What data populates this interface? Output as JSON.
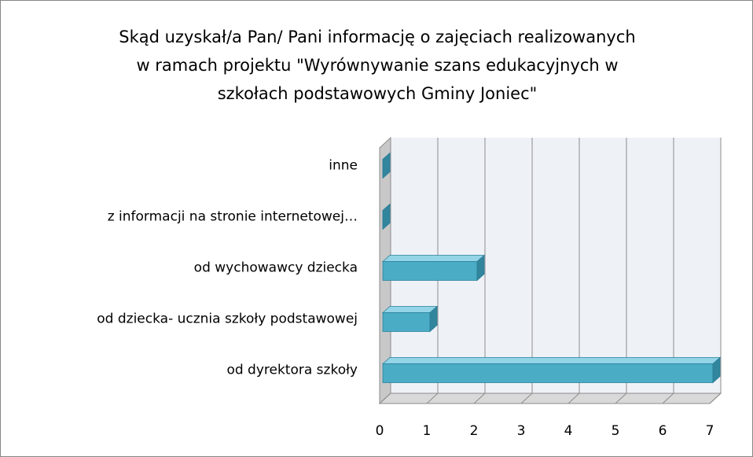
{
  "chart_data": {
    "type": "bar3d_horizontal",
    "title": [
      "Skąd uzyskał/a Pan/ Pani informację o zajęciach realizowanych",
      "w ramach projektu \"Wyrównywanie szans edukacyjnych w",
      "szkołach podstawowych Gminy Joniec\""
    ],
    "categories": [
      "inne",
      "z informacji na stronie internetowej…",
      "od wychowawcy dziecka",
      "od dziecka- ucznia szkoły podstawowej",
      "od dyrektora szkoły"
    ],
    "values": [
      0,
      0,
      2,
      1,
      7
    ],
    "color": "#4bacc6",
    "xlim": [
      0,
      7
    ],
    "xticks": [
      0,
      1,
      2,
      3,
      4,
      5,
      6,
      7
    ],
    "grid": true
  }
}
